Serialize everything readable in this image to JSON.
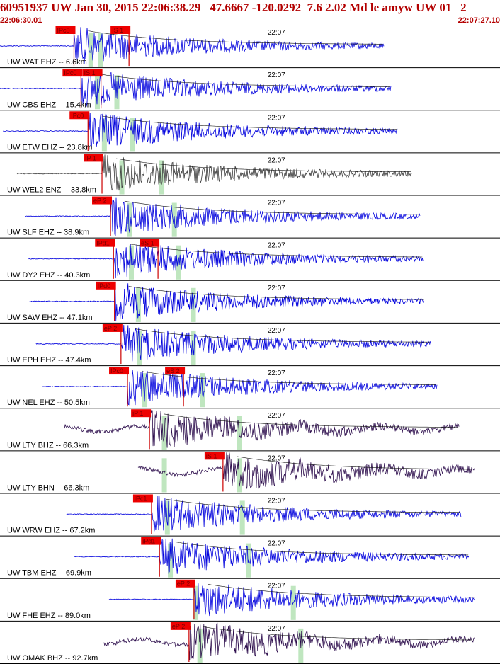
{
  "header": {
    "title": "60951937 UW Jan 30, 2015 22:06:38.29   47.6667 -120.0292  7.6 2.02 Md le amyw UW 01   2",
    "start_time": "22:06:30.01",
    "end_time": "22:07:27.10"
  },
  "colors": {
    "header_text": "#b30000",
    "trace_blue": "#0000dd",
    "trace_dark": "#3a3a3a",
    "trace_purple": "#2a0a4a",
    "pick_box": "#ee0000",
    "pick_text": "#7a0000",
    "predicted_band": "#bfe6bf",
    "divider": "#000000"
  },
  "chart_data": {
    "type": "line",
    "title": "60951937 UW Jan 30, 2015 22:06:38.29   47.6667 -120.0292  7.6 2.02 Md le amyw UW 01   2",
    "x_range": [
      "22:06:30.01",
      "22:07:27.10"
    ],
    "time_tick_label": "22:07",
    "traces": [
      {
        "label": "UW WAT EHZ -- 6.6km",
        "color": "#0000dd",
        "picks": [
          {
            "text": "IPc0",
            "frac": 0.148
          },
          {
            "text": "IS 1",
            "frac": 0.258
          }
        ],
        "predicted": [
          0.181,
          0.201
        ]
      },
      {
        "label": "UW CBS EHZ -- 15.4km",
        "color": "#0000dd",
        "picks": [
          {
            "text": "IPc0",
            "frac": 0.162
          },
          {
            "text": "IS 1",
            "frac": 0.202
          }
        ],
        "predicted": [
          0.194,
          0.233
        ]
      },
      {
        "label": "UW ETW EHZ -- 23.8km",
        "color": "#0000dd",
        "picks": [
          {
            "text": "IPc0",
            "frac": 0.176
          }
        ],
        "predicted": [
          0.208,
          0.264
        ]
      },
      {
        "label": "UW WEL2 ENZ -- 33.8km",
        "color": "#3a3a3a",
        "picks": [
          {
            "text": "IP 1",
            "frac": 0.204
          }
        ],
        "predicted": [
          0.243,
          0.323
        ]
      },
      {
        "label": "UW SLF EHZ -- 38.9km",
        "color": "#0000dd",
        "picks": [
          {
            "text": "eP 2",
            "frac": 0.221
          }
        ],
        "predicted": [
          0.258,
          0.348
        ]
      },
      {
        "label": "UW DY2 EHZ -- 40.3km",
        "color": "#0000dd",
        "picks": [
          {
            "text": "IPd1",
            "frac": 0.227
          },
          {
            "text": "eS 1",
            "frac": 0.316
          }
        ],
        "predicted": [
          0.262,
          0.356
        ]
      },
      {
        "label": "UW SAW EHZ -- 47.1km",
        "color": "#0000dd",
        "picks": [
          {
            "text": "IPd0",
            "frac": 0.229
          }
        ],
        "predicted": [
          0.276,
          0.386
        ]
      },
      {
        "label": "UW EPH EHZ -- 47.4km",
        "color": "#0000dd",
        "picks": [
          {
            "text": "eP 2",
            "frac": 0.242
          }
        ],
        "predicted": [
          0.278,
          0.386
        ]
      },
      {
        "label": "UW NEL EHZ -- 50.5km",
        "color": "#0000dd",
        "picks": [
          {
            "text": "IPc0",
            "frac": 0.255
          },
          {
            "text": "eS 2",
            "frac": 0.367
          }
        ],
        "predicted": [
          0.289,
          0.405
        ]
      },
      {
        "label": "UW LTY BHZ -- 66.3km",
        "color": "#2a0a4a",
        "picks": [
          {
            "text": "iP 1",
            "frac": 0.299
          }
        ],
        "predicted": [
          0.328,
          0.478
        ]
      },
      {
        "label": "UW LTY BHN -- 66.3km",
        "color": "#2a0a4a",
        "picks": [
          {
            "text": "iS 1",
            "frac": 0.446
          }
        ],
        "predicted": [
          0.328,
          0.478
        ]
      },
      {
        "label": "UW WRW EHZ -- 67.2km",
        "color": "#0000dd",
        "picks": [
          {
            "text": "iPc1",
            "frac": 0.303
          }
        ],
        "predicted": [
          0.334,
          0.484
        ]
      },
      {
        "label": "UW TBM EHZ -- 69.9km",
        "color": "#0000dd",
        "picks": [
          {
            "text": "iPd1",
            "frac": 0.319
          }
        ],
        "predicted": [
          0.34,
          0.496
        ]
      },
      {
        "label": "UW FHE EHZ -- 89.0km",
        "color": "#0000dd",
        "picks": [
          {
            "text": "eP 2",
            "frac": 0.388
          }
        ],
        "predicted": [
          0.391,
          0.586
        ]
      },
      {
        "label": "UW OMAK BHZ -- 92.7km",
        "color": "#2a0a4a",
        "picks": [
          {
            "text": "eP 2",
            "frac": 0.378
          }
        ],
        "predicted": [
          0.399,
          0.601
        ]
      }
    ]
  }
}
